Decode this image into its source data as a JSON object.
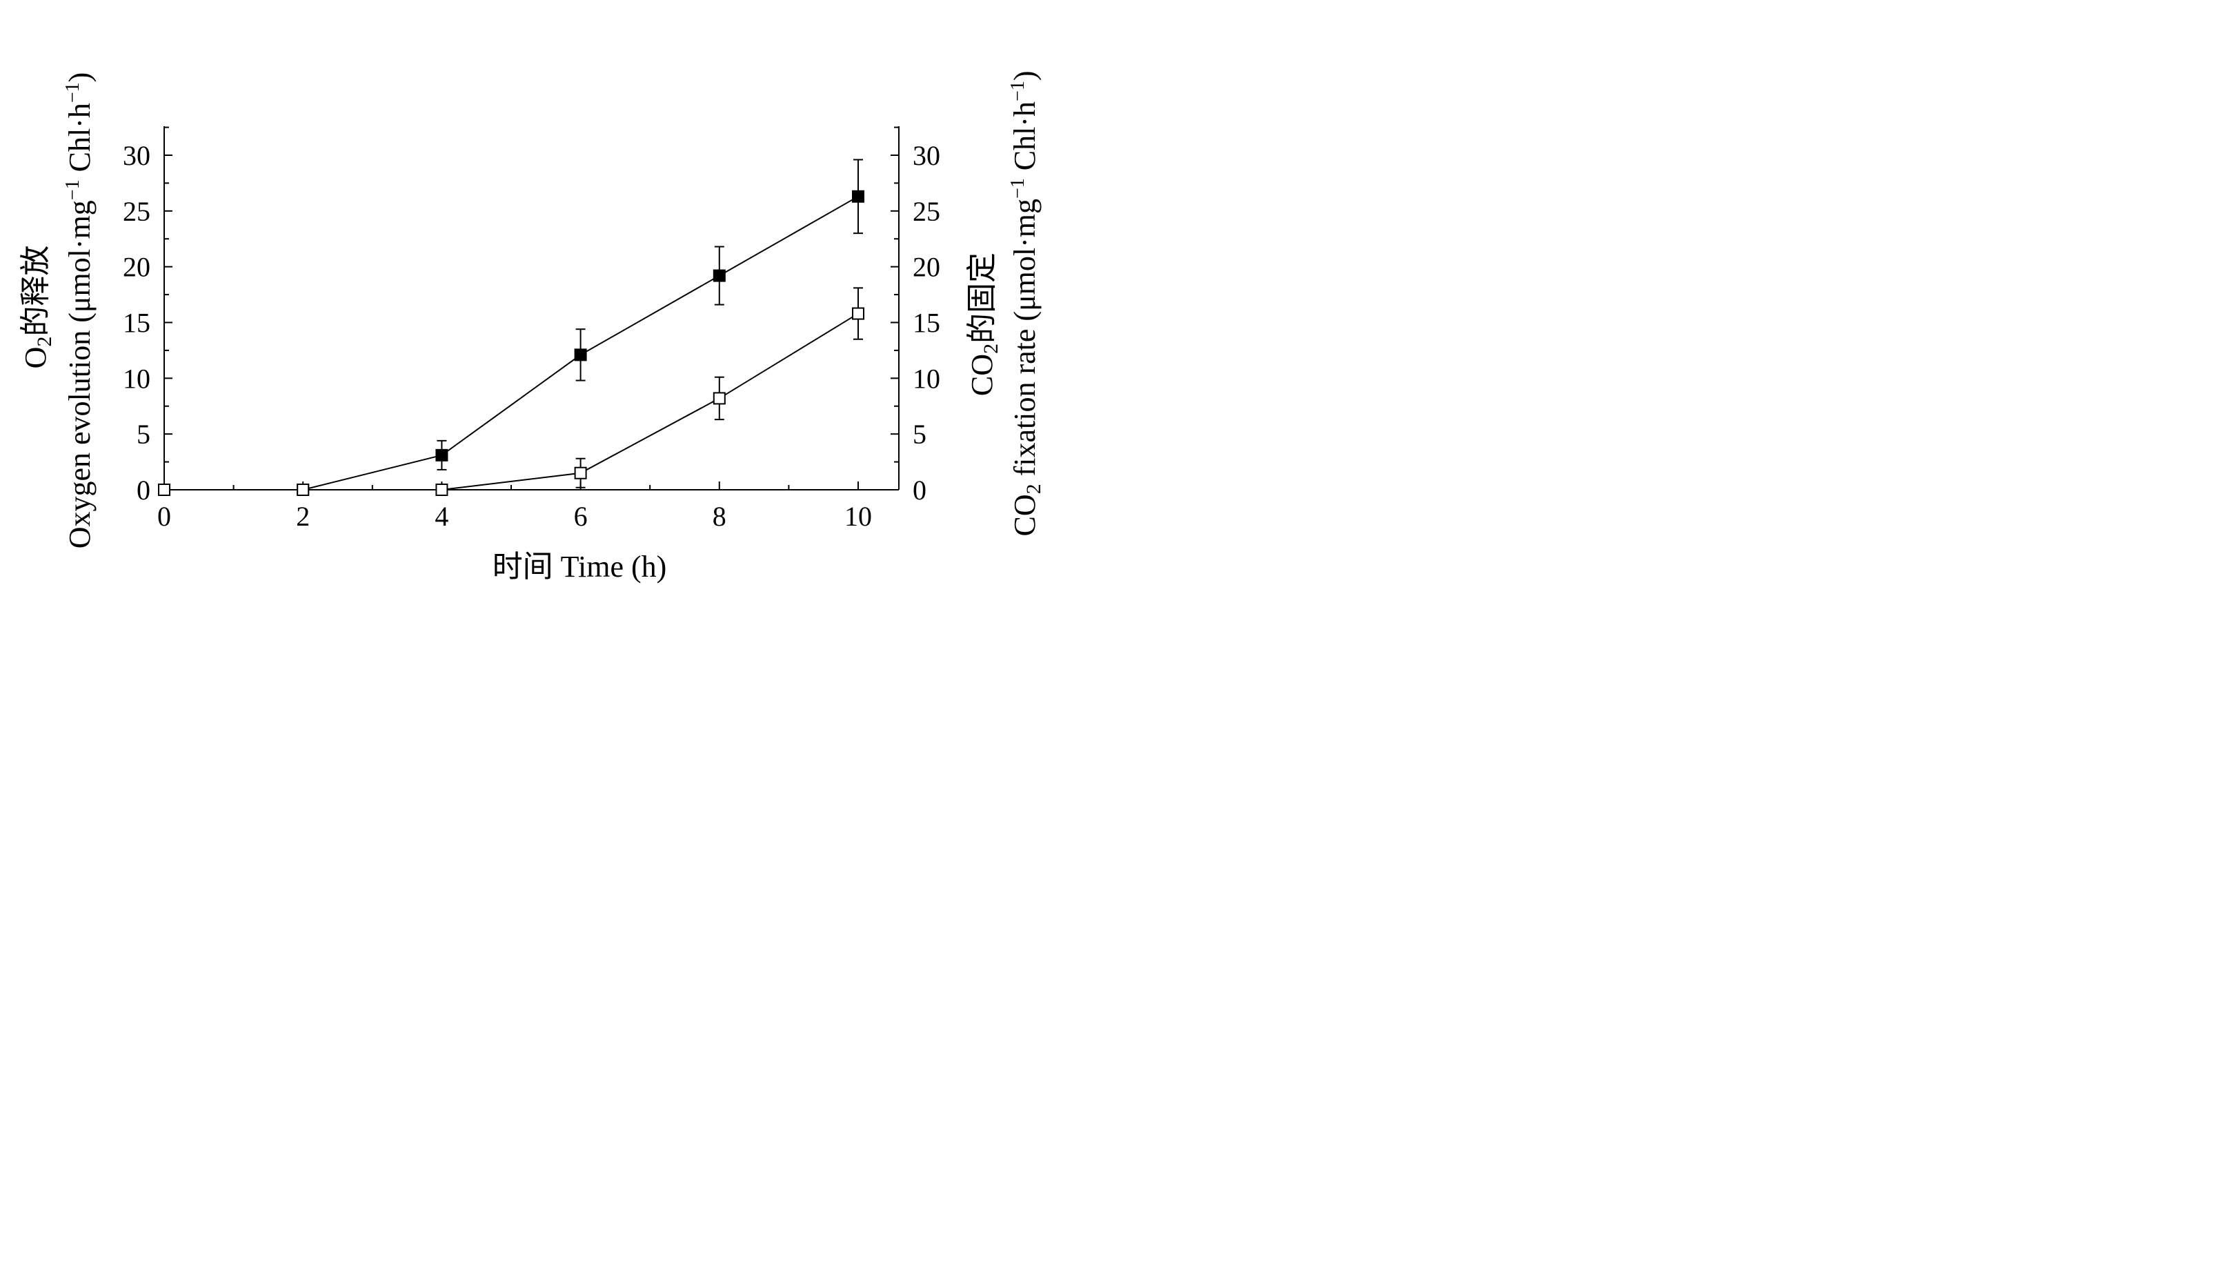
{
  "chart_data": {
    "type": "line",
    "x": [
      0,
      2,
      4,
      6,
      8,
      10
    ],
    "x_ticks": [
      "0",
      "2",
      "4",
      "6",
      "8",
      "10"
    ],
    "xlim": [
      0,
      10.5
    ],
    "xlabel": "时间 Time (h)",
    "ylim": [
      0,
      32.5
    ],
    "y_ticks": [
      "0",
      "5",
      "10",
      "15",
      "20",
      "25",
      "30"
    ],
    "y_minor_step": 2.5,
    "ylabel_left": {
      "line1_prefix": "O",
      "line1_sub": "2",
      "line1_suffix": "的释放",
      "line2_main": "Oxygen evolution (μmol·mg",
      "line2_sup1": "−1",
      "line2_mid": " Chl·h",
      "line2_sup2": "−1",
      "line2_end": ")"
    },
    "ylabel_right": {
      "line1_prefix": "CO",
      "line1_sub": "2",
      "line1_suffix": "的固定",
      "line2_prefix": "CO",
      "line2_sub": "2",
      "line2_main": " fixation rate (μmol·mg",
      "line2_sup1": "−1",
      "line2_mid": " Chl·h",
      "line2_sup2": "−1",
      "line2_end": ")"
    },
    "series": [
      {
        "marker": "filled-square",
        "axis": "left",
        "values": [
          0,
          0,
          3.1,
          12.1,
          19.2,
          26.3
        ],
        "errors": [
          0,
          0,
          1.3,
          2.3,
          2.6,
          3.3
        ]
      },
      {
        "marker": "open-square",
        "axis": "right",
        "values": [
          0,
          0,
          0,
          1.5,
          8.2,
          15.8
        ],
        "errors": [
          0,
          0,
          0,
          1.3,
          1.9,
          2.3
        ]
      }
    ],
    "grid": false,
    "legend": "none"
  }
}
